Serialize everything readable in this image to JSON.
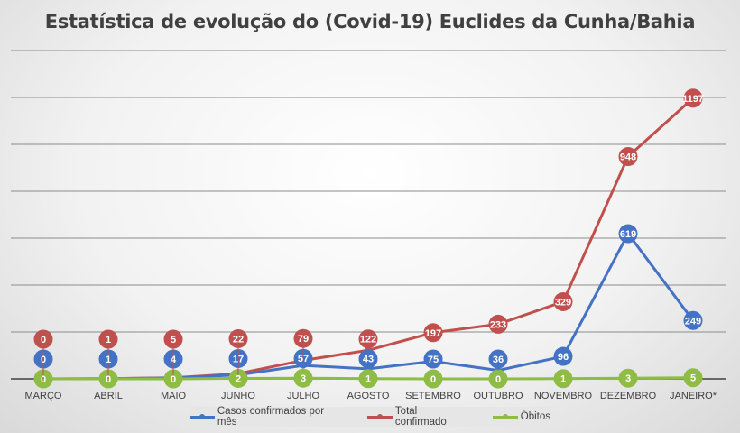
{
  "chart_data": {
    "type": "line",
    "title": "Estatística de evolução do (Covid-19)  Euclides da Cunha/Bahia",
    "categories": [
      "MARÇO",
      "ABRIL",
      "MAIO",
      "JUNHO",
      "JULHO",
      "AGOSTO",
      "SETEMBRO",
      "OUTUBRO",
      "NOVEMBRO",
      "DEZEMBRO",
      "JANEIRO*"
    ],
    "ylim": [
      0,
      1400
    ],
    "grid": true,
    "legend_position": "bottom",
    "series": [
      {
        "name": "Casos confirmados por mês",
        "color": "#4472c4",
        "values": [
          0,
          1,
          4,
          17,
          57,
          43,
          75,
          36,
          96,
          619,
          249
        ]
      },
      {
        "name": "Total confirmado",
        "color": "#c0504d",
        "values": [
          0,
          1,
          5,
          22,
          79,
          122,
          197,
          233,
          329,
          948,
          1197
        ]
      },
      {
        "name": "Óbitos",
        "color": "#8fbc45",
        "values": [
          0,
          0,
          0,
          2,
          3,
          1,
          0,
          0,
          1,
          3,
          5
        ]
      }
    ]
  }
}
